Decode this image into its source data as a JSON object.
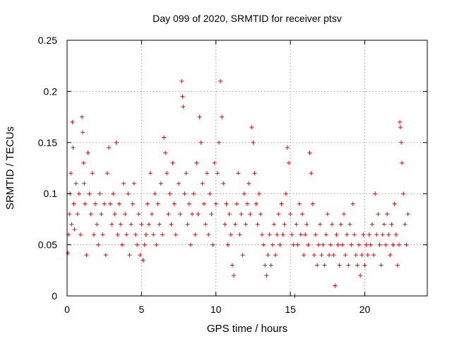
{
  "chart_data": {
    "type": "scatter",
    "title": "Day 099 of 2020, SRMTID for receiver ptsv",
    "xlabel": "GPS time / hours",
    "ylabel": "SRMTID / TECUs",
    "xlim": [
      0,
      24.2
    ],
    "ylim": [
      0,
      0.25
    ],
    "xticks": [
      0,
      5,
      10,
      15,
      20
    ],
    "xtick_labels": [
      "0",
      "5",
      "10",
      "15",
      "20"
    ],
    "yticks": [
      0,
      0.05,
      0.1,
      0.15,
      0.2,
      0.25
    ],
    "ytick_labels": [
      "0",
      "0.05",
      "0.1",
      "0.15",
      "0.2",
      "0.25"
    ],
    "grid": true,
    "marker": "plus",
    "color": "#ff0000",
    "series": [
      {
        "name": "SRMTID",
        "points": [
          [
            0.05,
            0.042
          ],
          [
            0.1,
            0.06
          ],
          [
            0.15,
            0.08
          ],
          [
            0.2,
            0.1
          ],
          [
            0.25,
            0.12
          ],
          [
            0.3,
            0.07
          ],
          [
            0.35,
            0.17
          ],
          [
            0.4,
            0.145
          ],
          [
            0.45,
            0.09
          ],
          [
            0.5,
            0.065
          ],
          [
            0.6,
            0.11
          ],
          [
            0.7,
            0.08
          ],
          [
            0.8,
            0.1
          ],
          [
            0.9,
            0.06
          ],
          [
            1.0,
            0.175
          ],
          [
            1.05,
            0.16
          ],
          [
            1.1,
            0.13
          ],
          [
            1.15,
            0.11
          ],
          [
            1.2,
            0.09
          ],
          [
            1.3,
            0.04
          ],
          [
            1.4,
            0.14
          ],
          [
            1.5,
            0.1
          ],
          [
            1.6,
            0.08
          ],
          [
            1.7,
            0.12
          ],
          [
            1.8,
            0.06
          ],
          [
            1.9,
            0.09
          ],
          [
            2.0,
            0.07
          ],
          [
            2.1,
            0.05
          ],
          [
            2.2,
            0.1
          ],
          [
            2.3,
            0.08
          ],
          [
            2.4,
            0.06
          ],
          [
            2.5,
            0.09
          ],
          [
            2.6,
            0.04
          ],
          [
            2.7,
            0.12
          ],
          [
            2.8,
            0.145
          ],
          [
            2.9,
            0.09
          ],
          [
            3.0,
            0.07
          ],
          [
            3.1,
            0.1
          ],
          [
            3.2,
            0.08
          ],
          [
            3.3,
            0.15
          ],
          [
            3.4,
            0.06
          ],
          [
            3.5,
            0.09
          ],
          [
            3.6,
            0.07
          ],
          [
            3.7,
            0.05
          ],
          [
            3.8,
            0.11
          ],
          [
            3.9,
            0.08
          ],
          [
            4.0,
            0.06
          ],
          [
            4.1,
            0.1
          ],
          [
            4.2,
            0.04
          ],
          [
            4.3,
            0.07
          ],
          [
            4.4,
            0.09
          ],
          [
            4.5,
            0.11
          ],
          [
            4.6,
            0.06
          ],
          [
            4.7,
            0.05
          ],
          [
            4.8,
            0.08
          ],
          [
            4.9,
            0.04
          ],
          [
            5.0,
            0.07
          ],
          [
            5.1,
            0.035
          ],
          [
            5.2,
            0.05
          ],
          [
            5.3,
            0.06
          ],
          [
            5.4,
            0.09
          ],
          [
            5.5,
            0.07
          ],
          [
            5.6,
            0.12
          ],
          [
            5.7,
            0.08
          ],
          [
            5.8,
            0.06
          ],
          [
            5.9,
            0.1
          ],
          [
            6.0,
            0.05
          ],
          [
            6.1,
            0.09
          ],
          [
            6.2,
            0.07
          ],
          [
            6.3,
            0.11
          ],
          [
            6.4,
            0.06
          ],
          [
            6.5,
            0.155
          ],
          [
            6.6,
            0.14
          ],
          [
            6.7,
            0.12
          ],
          [
            6.8,
            0.08
          ],
          [
            6.9,
            0.1
          ],
          [
            7.0,
            0.07
          ],
          [
            7.1,
            0.13
          ],
          [
            7.2,
            0.09
          ],
          [
            7.3,
            0.06
          ],
          [
            7.5,
            0.11
          ],
          [
            7.6,
            0.08
          ],
          [
            7.7,
            0.21
          ],
          [
            7.75,
            0.195
          ],
          [
            7.8,
            0.185
          ],
          [
            7.9,
            0.1
          ],
          [
            8.0,
            0.12
          ],
          [
            8.1,
            0.07
          ],
          [
            8.2,
            0.09
          ],
          [
            8.3,
            0.05
          ],
          [
            8.4,
            0.08
          ],
          [
            8.5,
            0.1
          ],
          [
            8.6,
            0.06
          ],
          [
            8.7,
            0.13
          ],
          [
            8.8,
            0.08
          ],
          [
            8.9,
            0.175
          ],
          [
            9.0,
            0.15
          ],
          [
            9.1,
            0.11
          ],
          [
            9.2,
            0.09
          ],
          [
            9.3,
            0.07
          ],
          [
            9.4,
            0.12
          ],
          [
            9.5,
            0.06
          ],
          [
            9.6,
            0.1
          ],
          [
            9.7,
            0.08
          ],
          [
            9.8,
            0.05
          ],
          [
            9.9,
            0.13
          ],
          [
            10.0,
            0.09
          ],
          [
            10.1,
            0.12
          ],
          [
            10.2,
            0.15
          ],
          [
            10.3,
            0.21
          ],
          [
            10.4,
            0.175
          ],
          [
            10.5,
            0.11
          ],
          [
            10.6,
            0.07
          ],
          [
            10.7,
            0.09
          ],
          [
            10.8,
            0.05
          ],
          [
            10.9,
            0.08
          ],
          [
            11.0,
            0.06
          ],
          [
            11.1,
            0.03
          ],
          [
            11.2,
            0.02
          ],
          [
            11.3,
            0.07
          ],
          [
            11.4,
            0.09
          ],
          [
            11.5,
            0.12
          ],
          [
            11.6,
            0.06
          ],
          [
            11.7,
            0.08
          ],
          [
            11.8,
            0.04
          ],
          [
            11.9,
            0.1
          ],
          [
            12.0,
            0.07
          ],
          [
            12.1,
            0.09
          ],
          [
            12.2,
            0.11
          ],
          [
            12.3,
            0.08
          ],
          [
            12.4,
            0.165
          ],
          [
            12.5,
            0.15
          ],
          [
            12.6,
            0.12
          ],
          [
            12.7,
            0.09
          ],
          [
            12.8,
            0.07
          ],
          [
            12.9,
            0.1
          ],
          [
            13.0,
            0.08
          ],
          [
            13.1,
            0.06
          ],
          [
            13.2,
            0.05
          ],
          [
            13.3,
            0.03
          ],
          [
            13.4,
            0.02
          ],
          [
            13.5,
            0.04
          ],
          [
            13.6,
            0.06
          ],
          [
            13.7,
            0.03
          ],
          [
            13.8,
            0.05
          ],
          [
            13.9,
            0.07
          ],
          [
            14.0,
            0.04
          ],
          [
            14.1,
            0.06
          ],
          [
            14.2,
            0.08
          ],
          [
            14.3,
            0.05
          ],
          [
            14.4,
            0.09
          ],
          [
            14.5,
            0.06
          ],
          [
            14.6,
            0.07
          ],
          [
            14.7,
            0.1
          ],
          [
            14.8,
            0.145
          ],
          [
            14.9,
            0.13
          ],
          [
            15.0,
            0.08
          ],
          [
            15.1,
            0.06
          ],
          [
            15.2,
            0.05
          ],
          [
            15.3,
            0.0
          ],
          [
            15.4,
            0.07
          ],
          [
            15.5,
            0.05
          ],
          [
            15.6,
            0.09
          ],
          [
            15.7,
            0.06
          ],
          [
            15.8,
            0.08
          ],
          [
            15.9,
            0.04
          ],
          [
            16.0,
            0.06
          ],
          [
            16.1,
            0.07
          ],
          [
            16.2,
            0.05
          ],
          [
            16.3,
            0.14
          ],
          [
            16.4,
            0.12
          ],
          [
            16.5,
            0.09
          ],
          [
            16.6,
            0.04
          ],
          [
            16.7,
            0.06
          ],
          [
            16.8,
            0.03
          ],
          [
            16.9,
            0.05
          ],
          [
            17.0,
            0.07
          ],
          [
            17.1,
            0.04
          ],
          [
            17.2,
            0.05
          ],
          [
            17.3,
            0.03
          ],
          [
            17.4,
            0.06
          ],
          [
            17.5,
            0.08
          ],
          [
            17.6,
            0.04
          ],
          [
            17.7,
            0.05
          ],
          [
            17.8,
            0.07
          ],
          [
            17.9,
            0.04
          ],
          [
            18.0,
            0.01
          ],
          [
            18.1,
            0.06
          ],
          [
            18.2,
            0.05
          ],
          [
            18.3,
            0.03
          ],
          [
            18.4,
            0.07
          ],
          [
            18.5,
            0.05
          ],
          [
            18.6,
            0.08
          ],
          [
            18.7,
            0.04
          ],
          [
            18.8,
            0.06
          ],
          [
            18.9,
            0.03
          ],
          [
            19.0,
            0.07
          ],
          [
            19.1,
            0.05
          ],
          [
            19.2,
            0.09
          ],
          [
            19.3,
            0.06
          ],
          [
            19.4,
            0.04
          ],
          [
            19.5,
            0.03
          ],
          [
            19.6,
            0.05
          ],
          [
            19.7,
            0.02
          ],
          [
            19.8,
            0.04
          ],
          [
            19.9,
            0.06
          ],
          [
            20.0,
            0.03
          ],
          [
            20.1,
            0.05
          ],
          [
            20.2,
            0.04
          ],
          [
            20.3,
            0.06
          ],
          [
            20.4,
            0.05
          ],
          [
            20.5,
            0.07
          ],
          [
            20.6,
            0.04
          ],
          [
            20.7,
            0.1
          ],
          [
            20.8,
            0.06
          ],
          [
            20.9,
            0.08
          ],
          [
            21.0,
            0.05
          ],
          [
            21.1,
            0.03
          ],
          [
            21.2,
            0.06
          ],
          [
            21.3,
            0.07
          ],
          [
            21.4,
            0.05
          ],
          [
            21.5,
            0.08
          ],
          [
            21.6,
            0.06
          ],
          [
            21.7,
            0.04
          ],
          [
            21.8,
            0.07
          ],
          [
            21.9,
            0.05
          ],
          [
            22.0,
            0.09
          ],
          [
            22.1,
            0.06
          ],
          [
            22.2,
            0.03
          ],
          [
            22.3,
            0.05
          ],
          [
            22.35,
            0.17
          ],
          [
            22.4,
            0.165
          ],
          [
            22.45,
            0.15
          ],
          [
            22.5,
            0.13
          ],
          [
            22.6,
            0.1
          ],
          [
            22.7,
            0.07
          ],
          [
            22.8,
            0.05
          ],
          [
            22.9,
            0.08
          ]
        ]
      }
    ]
  }
}
